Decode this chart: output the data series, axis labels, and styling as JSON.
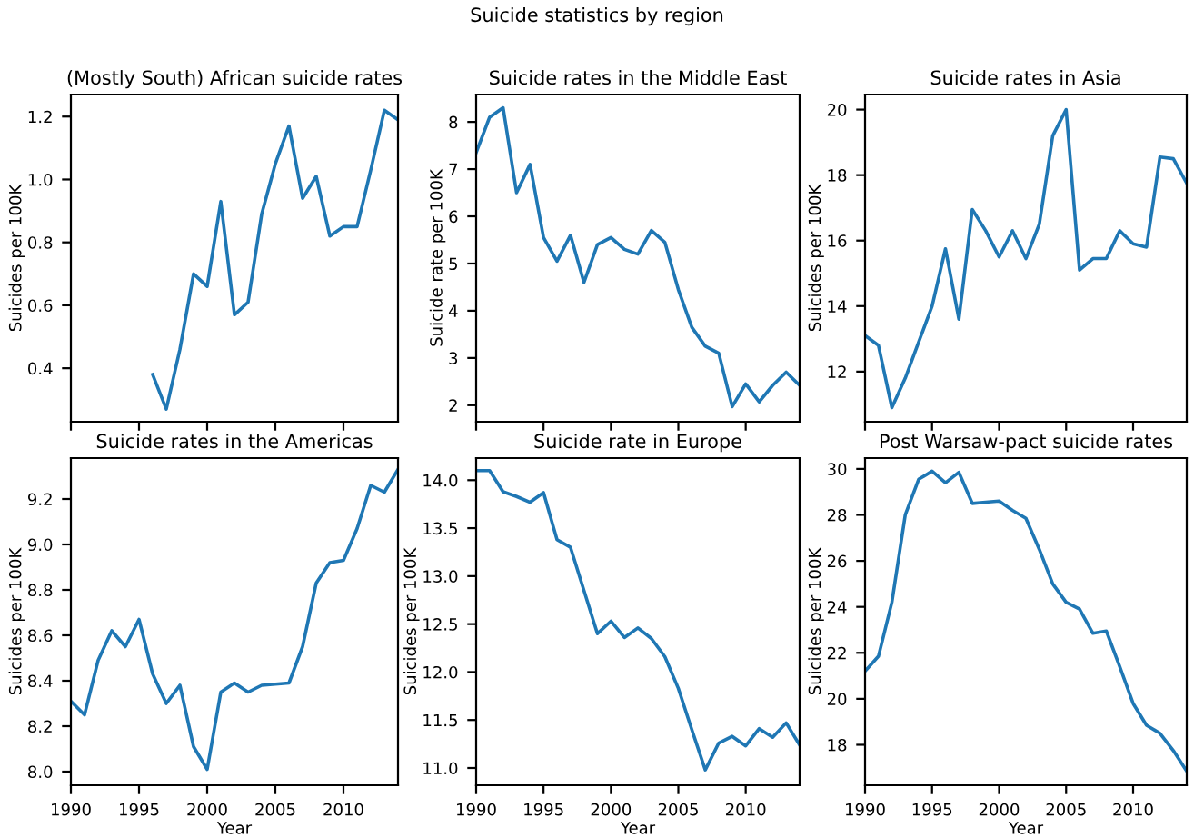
{
  "chart_data": [
    {
      "type": "line",
      "title": "(Mostly South) African suicide rates",
      "ylabel": "Suicides per 100K",
      "annotations": [
        "Suicide statistics by region"
      ],
      "x": [
        1996,
        1997,
        1998,
        1999,
        2000,
        2001,
        2002,
        2003,
        2004,
        2005,
        2006,
        2007,
        2008,
        2009,
        2010,
        2011,
        2012,
        2013,
        2014
      ],
      "series": [
        {
          "color": "#1f77b4",
          "values": [
            0.38,
            0.27,
            0.46,
            0.7,
            0.66,
            0.93,
            0.57,
            0.61,
            0.89,
            1.05,
            1.17,
            0.94,
            1.01,
            0.82,
            0.85,
            0.85,
            1.03,
            1.22,
            1.19
          ]
        }
      ],
      "xlim": [
        1990,
        2014
      ],
      "xticks": [
        1990,
        1995,
        2000,
        2005,
        2010
      ],
      "ylim": [
        0.23,
        1.27
      ],
      "yticks": [
        0.4,
        0.6,
        0.8,
        {
          "value": 1,
          "label": "1.0"
        },
        1.2
      ],
      "tick_labels": "y",
      "grid": false
    },
    {
      "type": "line",
      "title": "Suicide rates in the Middle East",
      "ylabel": "Suicide rate per 100K",
      "x": [
        1990,
        1991,
        1992,
        1993,
        1994,
        1995,
        1996,
        1997,
        1998,
        1999,
        2000,
        2001,
        2002,
        2003,
        2004,
        2005,
        2006,
        2007,
        2008,
        2009,
        2010,
        2011,
        2012,
        2013,
        2014
      ],
      "series": [
        {
          "color": "#1f77b4",
          "values": [
            7.35,
            8.1,
            8.3,
            6.5,
            7.1,
            5.55,
            5.05,
            5.6,
            4.6,
            5.4,
            5.55,
            5.3,
            5.2,
            5.7,
            5.45,
            4.45,
            3.65,
            3.25,
            3.1,
            1.97,
            2.45,
            2.07,
            2.42,
            2.7,
            2.42
          ]
        }
      ],
      "xlim": [
        1990,
        2014
      ],
      "xticks": [
        1990,
        1995,
        2000,
        2005,
        2010
      ],
      "ylim": [
        1.65,
        8.58
      ],
      "yticks": [
        2,
        3,
        4,
        5,
        6,
        7,
        8
      ],
      "tick_labels": "y",
      "grid": false
    },
    {
      "type": "line",
      "title": "Suicide rates in Asia",
      "ylabel": "Suicides per 100K",
      "x": [
        1990,
        1991,
        1992,
        1993,
        1994,
        1995,
        1996,
        1997,
        1998,
        1999,
        2000,
        2001,
        2002,
        2003,
        2004,
        2005,
        2006,
        2007,
        2008,
        2009,
        2010,
        2011,
        2012,
        2013,
        2014
      ],
      "series": [
        {
          "color": "#1f77b4",
          "values": [
            13.1,
            12.8,
            10.9,
            11.8,
            12.9,
            14.0,
            15.75,
            13.6,
            16.95,
            16.3,
            15.5,
            16.3,
            15.45,
            16.5,
            19.2,
            20.0,
            15.1,
            15.45,
            15.45,
            16.3,
            15.9,
            15.8,
            18.55,
            18.5,
            17.75
          ]
        }
      ],
      "xlim": [
        1990,
        2014
      ],
      "xticks": [
        1990,
        1995,
        2000,
        2005,
        2010
      ],
      "ylim": [
        10.47,
        20.46
      ],
      "yticks": [
        12,
        14,
        16,
        18,
        20
      ],
      "tick_labels": "y",
      "grid": false
    },
    {
      "type": "line",
      "title": "Suicide rates in the Americas",
      "xlabel": "Year",
      "ylabel": "Suicides per 100K",
      "x": [
        1990,
        1991,
        1992,
        1993,
        1994,
        1995,
        1996,
        1997,
        1998,
        1999,
        2000,
        2001,
        2002,
        2003,
        2004,
        2005,
        2006,
        2007,
        2008,
        2009,
        2010,
        2011,
        2012,
        2013,
        2014
      ],
      "series": [
        {
          "color": "#1f77b4",
          "values": [
            8.31,
            8.25,
            8.49,
            8.62,
            8.55,
            8.67,
            8.43,
            8.3,
            8.38,
            8.11,
            8.01,
            8.35,
            8.39,
            8.35,
            8.38,
            8.385,
            8.39,
            8.55,
            8.83,
            8.92,
            8.93,
            9.07,
            9.26,
            9.23,
            9.33
          ]
        }
      ],
      "xlim": [
        1990,
        2014
      ],
      "xticks": [
        1990,
        1995,
        2000,
        2005,
        2010
      ],
      "ylim": [
        7.94,
        9.38
      ],
      "yticks": [
        {
          "value": 8,
          "label": "8.0"
        },
        8.2,
        8.4,
        8.6,
        8.8,
        {
          "value": 9,
          "label": "9.0"
        },
        9.2
      ],
      "grid": false
    },
    {
      "type": "line",
      "title": "Suicide rate in Europe",
      "xlabel": "Year",
      "ylabel": "Suicides per 100K",
      "x": [
        1990,
        1991,
        1992,
        1993,
        1994,
        1995,
        1996,
        1997,
        1998,
        1999,
        2000,
        2001,
        2002,
        2003,
        2004,
        2005,
        2006,
        2007,
        2008,
        2009,
        2010,
        2011,
        2012,
        2013,
        2014
      ],
      "series": [
        {
          "color": "#1f77b4",
          "values": [
            14.1,
            14.1,
            13.88,
            13.83,
            13.77,
            13.87,
            13.38,
            13.3,
            12.85,
            12.4,
            12.53,
            12.36,
            12.46,
            12.35,
            12.16,
            11.83,
            11.4,
            10.98,
            11.26,
            11.33,
            11.23,
            11.41,
            11.32,
            11.47,
            11.24
          ]
        }
      ],
      "xlim": [
        1990,
        2014
      ],
      "xticks": [
        1990,
        1995,
        2000,
        2005,
        2010
      ],
      "ylim": [
        10.82,
        14.23
      ],
      "yticks": [
        {
          "value": 11,
          "label": "11.0"
        },
        11.5,
        {
          "value": 12,
          "label": "12.0"
        },
        12.5,
        {
          "value": 13,
          "label": "13.0"
        },
        13.5,
        {
          "value": 14,
          "label": "14.0"
        }
      ],
      "grid": false
    },
    {
      "type": "line",
      "title": "Post Warsaw-pact suicide rates",
      "xlabel": "Year",
      "ylabel": "Suicides per 100K",
      "x": [
        1990,
        1991,
        1992,
        1993,
        1994,
        1995,
        1996,
        1997,
        1998,
        1999,
        2000,
        2001,
        2002,
        2003,
        2004,
        2005,
        2006,
        2007,
        2008,
        2009,
        2010,
        2011,
        2012,
        2013,
        2014
      ],
      "series": [
        {
          "color": "#1f77b4",
          "values": [
            21.2,
            21.85,
            24.2,
            28.0,
            29.55,
            29.9,
            29.4,
            29.85,
            28.5,
            28.55,
            28.6,
            28.2,
            27.85,
            26.5,
            25.0,
            24.2,
            23.9,
            22.85,
            22.95,
            21.4,
            19.8,
            18.85,
            18.5,
            17.75,
            16.85
          ]
        }
      ],
      "xlim": [
        1990,
        2014
      ],
      "xticks": [
        1990,
        1995,
        2000,
        2005,
        2010
      ],
      "ylim": [
        16.24,
        30.47
      ],
      "yticks": [
        18,
        20,
        22,
        24,
        26,
        28,
        30
      ],
      "grid": false
    }
  ]
}
